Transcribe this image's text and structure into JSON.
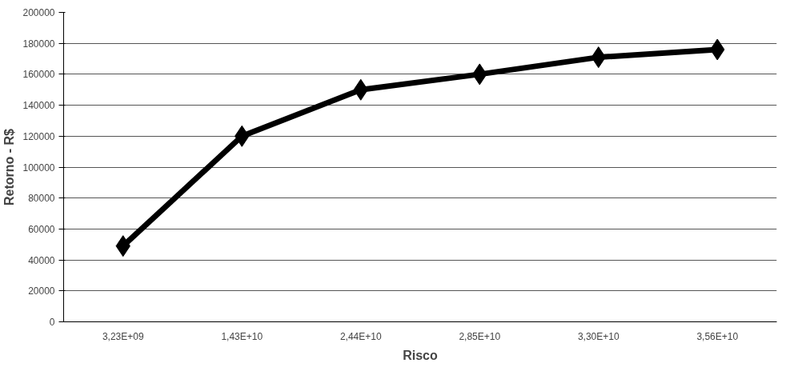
{
  "chart_data": {
    "type": "line",
    "xlabel": "Risco",
    "ylabel": "Retorno - R$",
    "categories": [
      "3,23E+09",
      "1,43E+10",
      "2,44E+10",
      "2,85E+10",
      "3,30E+10",
      "3,56E+10"
    ],
    "series": [
      {
        "color": "#000000",
        "values": [
          49000,
          120000,
          150000,
          160000,
          171000,
          176000
        ]
      }
    ],
    "ylim": [
      0,
      200000
    ],
    "yticks": [
      0,
      20000,
      40000,
      60000,
      80000,
      100000,
      120000,
      140000,
      160000,
      180000,
      200000
    ],
    "grid": "y",
    "marker": "diamond",
    "line_style": "solid"
  }
}
